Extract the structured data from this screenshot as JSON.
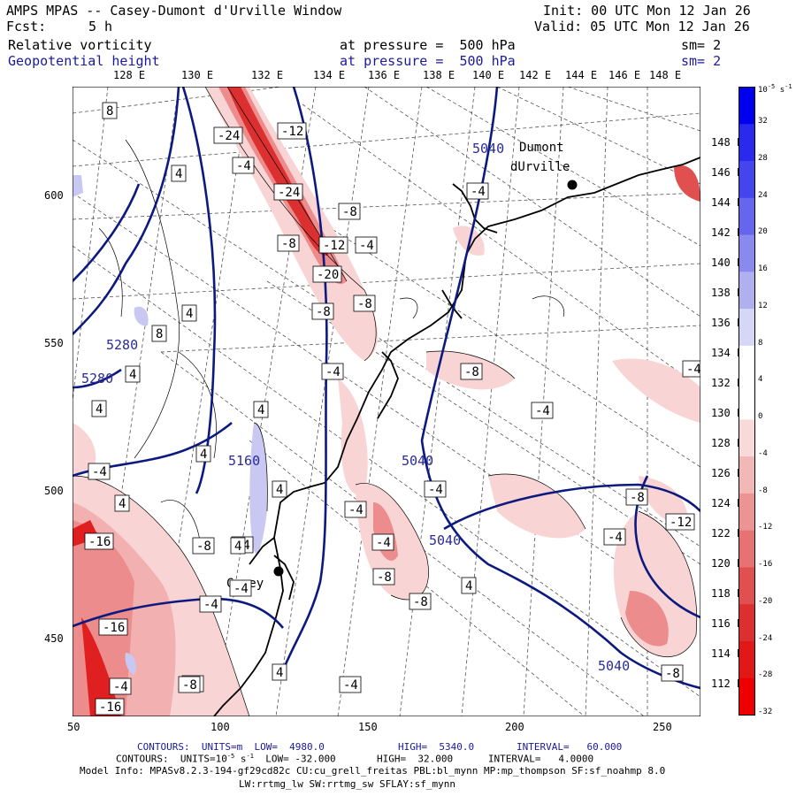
{
  "header": {
    "title": "AMPS MPAS -- Casey-Dumont d'Urville Window",
    "init": "Init: 00 UTC Mon 12 Jan 26",
    "fcst_label": "Fcst:",
    "fcst_value": "5 h",
    "valid": "Valid: 05 UTC Mon 12 Jan 26",
    "field1": "Relative vorticity",
    "field1_level": "at pressure =  500 hPa",
    "field1_sm": "sm= 2",
    "field2": "Geopotential height",
    "field2_level": "at pressure =  500 hPa",
    "field2_sm": "sm= 2"
  },
  "top_lon_labels": [
    "128 E",
    "130 E",
    "132 E",
    "134 E",
    "136 E",
    "138 E",
    "140 E",
    "142 E",
    "144 E",
    "146 E",
    "148 E"
  ],
  "right_lon_labels": [
    "148 E",
    "146 E",
    "144 E",
    "142 E",
    "140 E",
    "138 E",
    "136 E",
    "134 E",
    "132 E",
    "130 E",
    "128 E",
    "126 E",
    "124 E",
    "122 E",
    "120 E",
    "118 E",
    "116 E",
    "114 E",
    "112 E"
  ],
  "left_y_labels": [
    "600",
    "550",
    "500",
    "450"
  ],
  "bottom_x_labels": [
    "50",
    "100",
    "150",
    "200",
    "250"
  ],
  "places": [
    {
      "name": "Dumont",
      "name2": "dUrville"
    },
    {
      "name": "Casey"
    }
  ],
  "geopotential_labels": [
    "5040",
    "5280",
    "5280",
    "5160",
    "5040",
    "5040",
    "5040"
  ],
  "vorticity_labels": [
    "8",
    "-12",
    "-24",
    "-4",
    "4",
    "-24",
    "-4",
    "-8",
    "-8",
    "-12",
    "-4",
    "-20",
    "-8",
    "-8",
    "4",
    "8",
    "4",
    "4",
    "-4",
    "-8",
    "4",
    "-4",
    "-4",
    "4",
    "-4",
    "-4",
    "4",
    "4",
    "-4",
    "-8",
    "-4",
    "-12",
    "-4",
    "-8",
    "-4",
    "-8",
    "-16",
    "4",
    "-4",
    "4",
    "-8",
    "-4",
    "-8",
    "-16",
    "4",
    "-4",
    "-8",
    "-16",
    "-8",
    "-4"
  ],
  "colorbar": {
    "unit": "10",
    "unit_exp": "-5",
    "unit_tail": " s",
    "unit_tail_exp": "-1",
    "labels": [
      "32",
      "28",
      "24",
      "20",
      "16",
      "12",
      "8",
      "4",
      "0",
      "-4",
      "-8",
      "-12",
      "-16",
      "-20",
      "-24",
      "-28",
      "-32"
    ],
    "colors": [
      "#0000ee",
      "#2a2aee",
      "#4545ee",
      "#6565ee",
      "#8a8aee",
      "#b0b0f0",
      "#d6d6f6",
      "#ffffff",
      "#ffffff",
      "#f8dada",
      "#f2b8b8",
      "#ec9494",
      "#e67272",
      "#e05050",
      "#dc3030",
      "#e01818",
      "#ee0000"
    ]
  },
  "footer": {
    "line1_contours": "CONTOURS:  UNITS=m  LOW=  4980.0",
    "line1_high": "HIGH=  5340.0",
    "line1_interval": "INTERVAL=   60.000",
    "line2": "CONTOURS:  UNITS=10",
    "line2_exp": "-5",
    "line2_s": " s",
    "line2_sexp": "-1",
    "line2_rest": "  LOW= -32.000       HIGH=  32.000      INTERVAL=   4.0000",
    "line3": "Model Info: MPASv8.2.3-194-gf29cd82c CU:cu_grell_freitas PBL:bl_mynn MP:mp_thompson SF:sf_noahmp 8.0",
    "line4": "LW:rrtmg_lw SW:rrtmg_sw SFLAY:sf_mynn"
  },
  "colors": {
    "geopotential": "#0c1a80",
    "vort_pos": "#c8c8f2",
    "vort_neg_light": "#f9d4d4",
    "vort_neg_mid": "#ec8c8c",
    "vort_neg_strong": "#e02020",
    "coast": "#000000"
  }
}
